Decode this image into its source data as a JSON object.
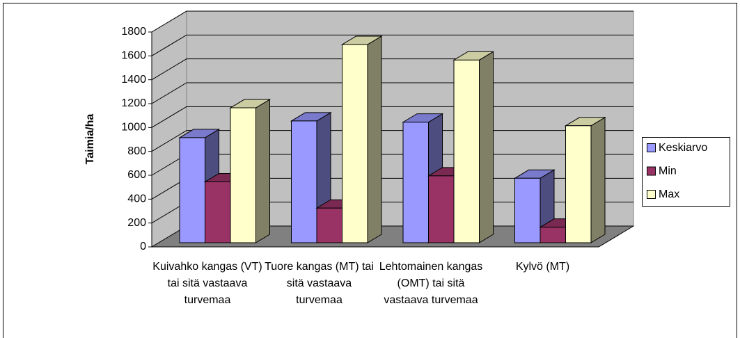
{
  "chart_data": {
    "type": "bar3d",
    "y_label": "Taimia/ha",
    "categories": [
      "Kuivahko kangas (VT) tai sitä vastaava turvemaa",
      "Tuore kangas (MT) tai sitä vastaava turvemaa",
      "Lehtomainen kangas (OMT) tai sitä vastaava turvemaa",
      "Kylvö (MT)"
    ],
    "series": [
      {
        "name": "Keskiarvo",
        "color": "#9999ff",
        "values": [
          880,
          1020,
          1010,
          540
        ]
      },
      {
        "name": "Min",
        "color": "#993366",
        "values": [
          510,
          290,
          560,
          130
        ]
      },
      {
        "name": "Max",
        "color": "#ffffcc",
        "values": [
          1130,
          1660,
          1530,
          980
        ]
      }
    ],
    "ylim": [
      0,
      1800
    ],
    "yticks": [
      0,
      200,
      400,
      600,
      800,
      1000,
      1200,
      1400,
      1600,
      1800
    ],
    "grid": true,
    "legend": "right"
  }
}
